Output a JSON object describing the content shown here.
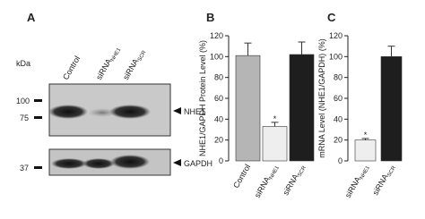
{
  "blot": {
    "panel": "A",
    "unit": "kDa",
    "lanes": [
      {
        "text": "Control",
        "sub": null
      },
      {
        "text": "siRNA",
        "sub": "NHE1"
      },
      {
        "text": "siRNA",
        "sub": "SCR"
      }
    ],
    "markers": [
      "100",
      "75",
      "37"
    ],
    "bands": [
      "NHE1",
      "GAPDH"
    ]
  },
  "chart_data": [
    {
      "type": "bar",
      "panel": "B",
      "ylabel": "NHE1/GAPDH Protein Level (%)",
      "categories": [
        "Control",
        "siRNA",
        "siRNA"
      ],
      "category_subscripts": [
        null,
        "NHE1",
        "SCR"
      ],
      "values": [
        101,
        33,
        102
      ],
      "errors": [
        12,
        4,
        12
      ],
      "colors": [
        "#b5b5b5",
        "#eeeeee",
        "#1e1e1e"
      ],
      "significance": [
        null,
        "*",
        null
      ],
      "ylim": [
        0,
        120
      ],
      "yticks": [
        0,
        20,
        40,
        60,
        80,
        100,
        120
      ]
    },
    {
      "type": "bar",
      "panel": "C",
      "ylabel": "mRNA Level (NHE1/GAPDH) (%)",
      "categories": [
        "siRNA",
        "siRNA"
      ],
      "category_subscripts": [
        "NHE1",
        "SCR"
      ],
      "values": [
        20,
        100
      ],
      "errors": [
        1.5,
        10
      ],
      "colors": [
        "#eeeeee",
        "#1e1e1e"
      ],
      "significance": [
        "*",
        null
      ],
      "ylim": [
        0,
        120
      ],
      "yticks": [
        0,
        20,
        40,
        60,
        80,
        100,
        120
      ]
    }
  ]
}
